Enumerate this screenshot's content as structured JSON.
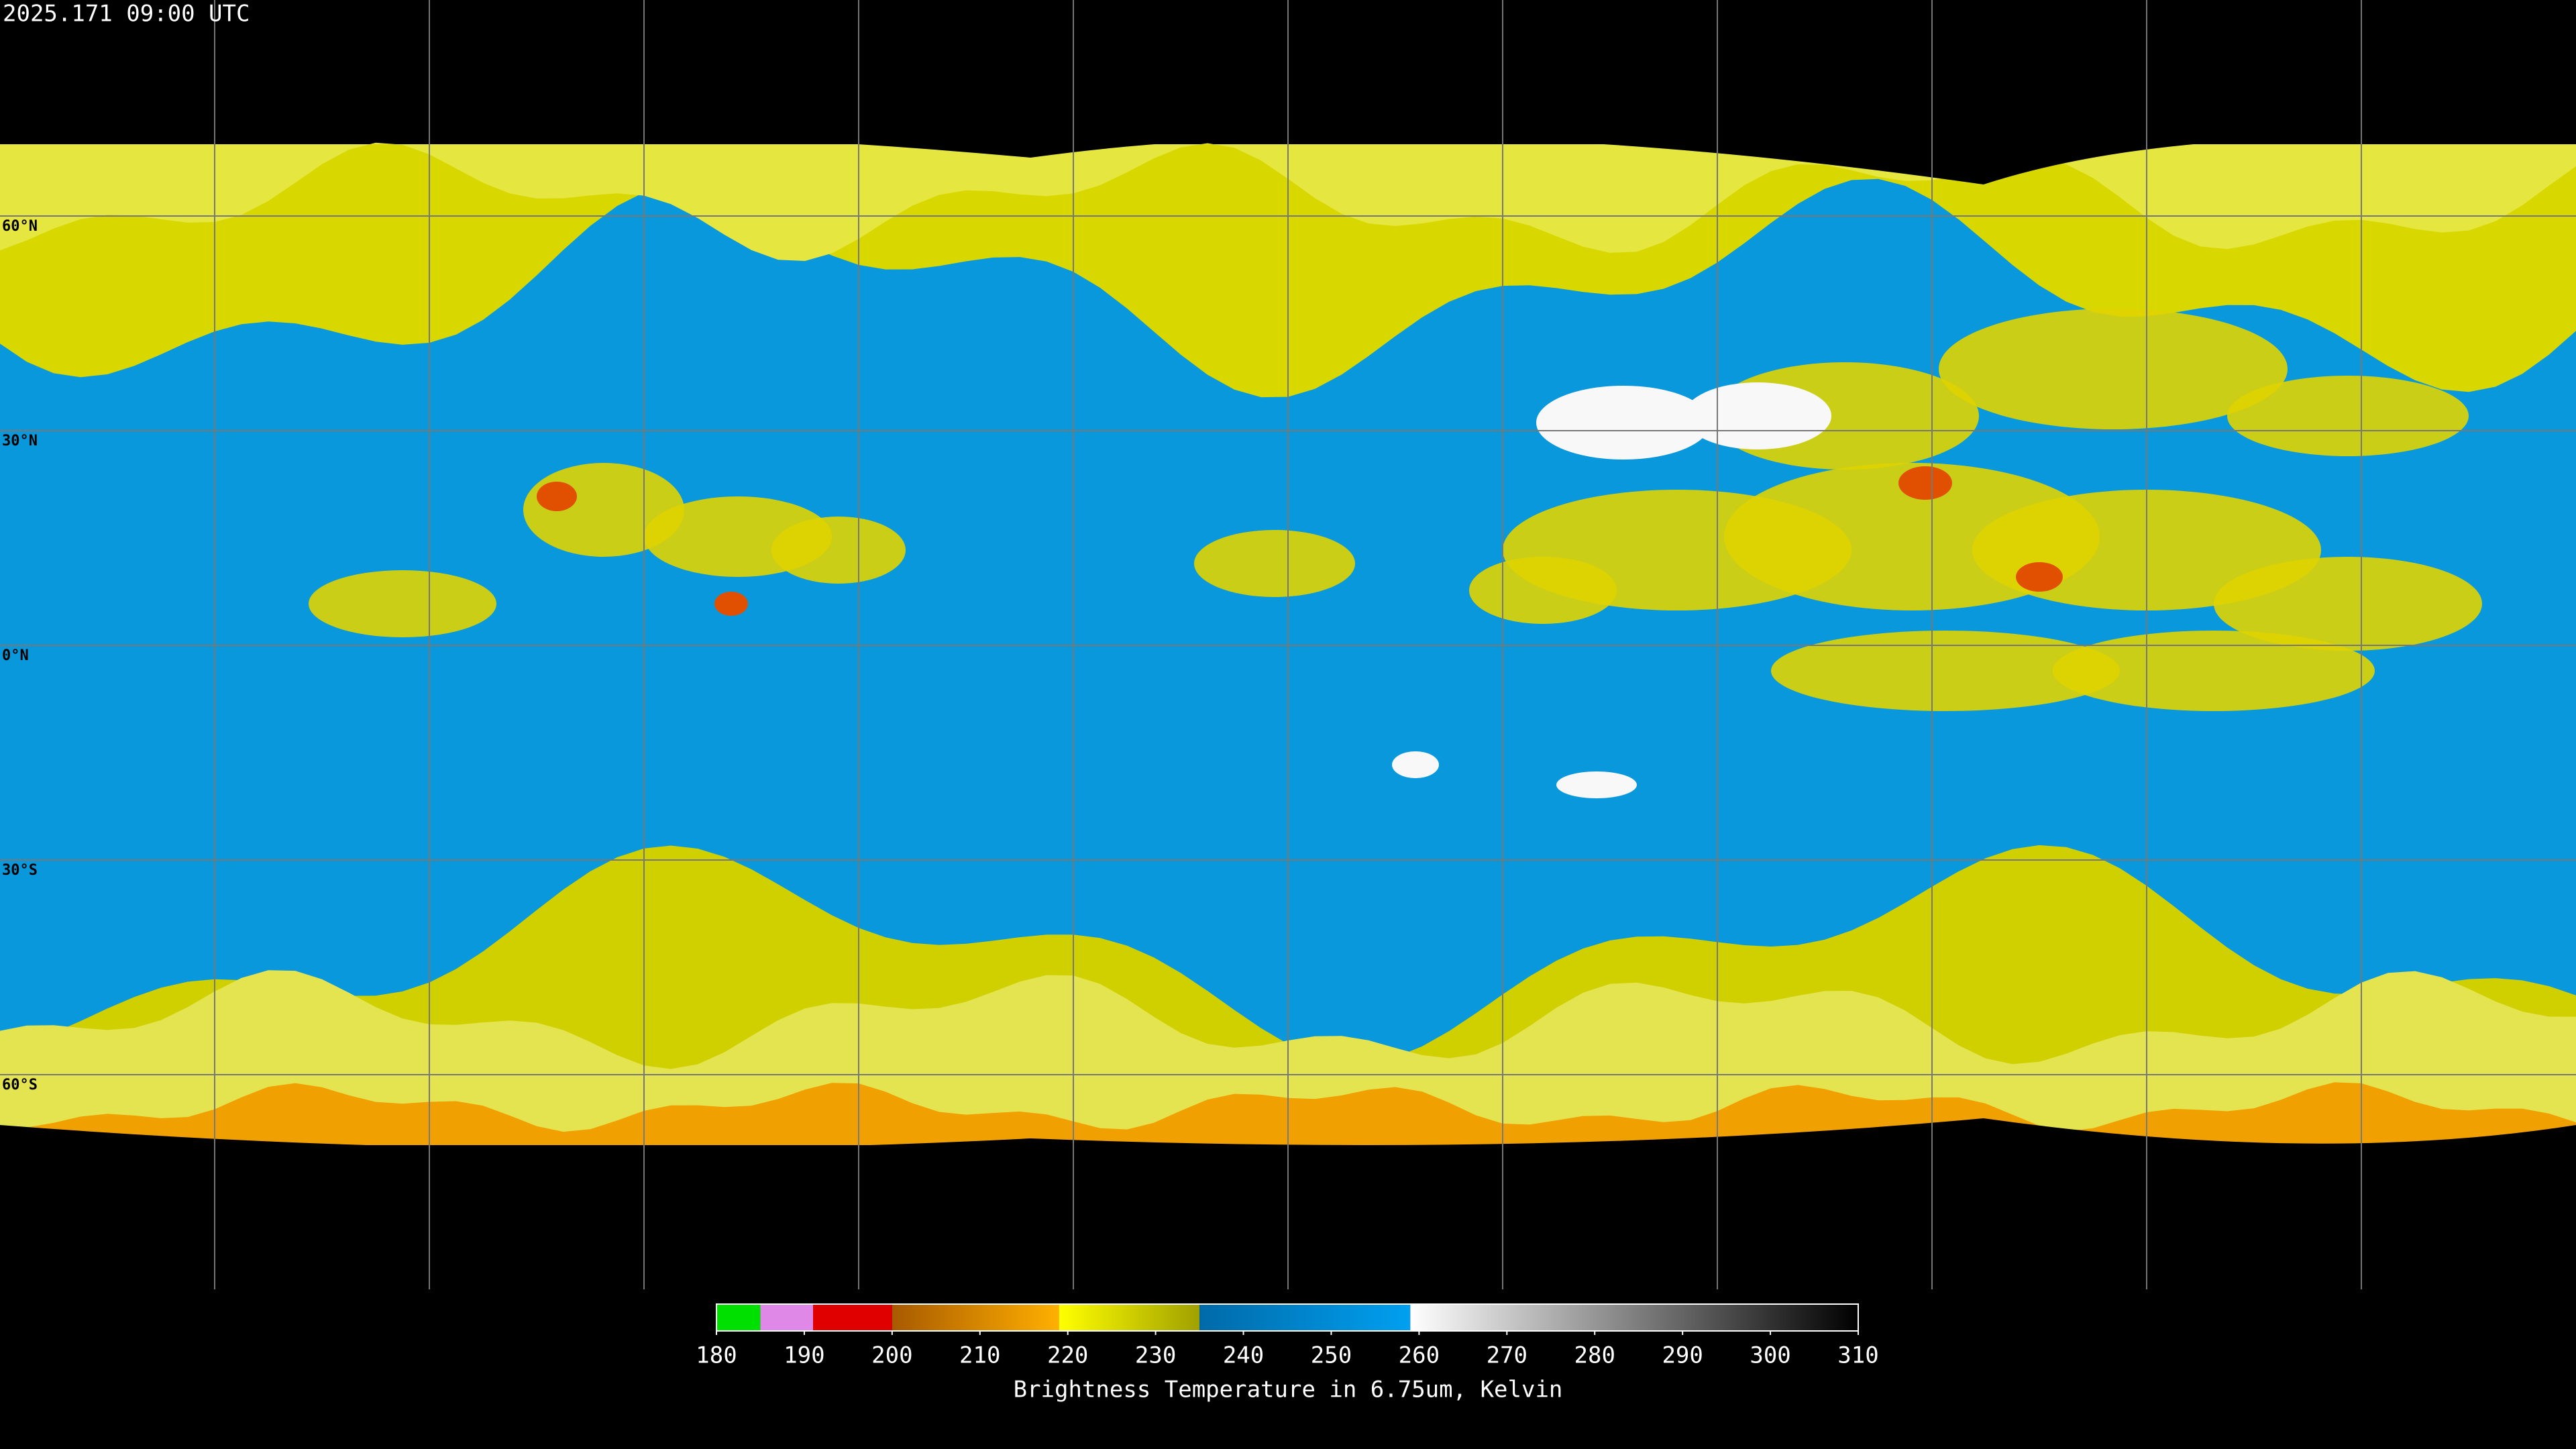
{
  "header": {
    "timestamp": "2025.171 09:00 UTC"
  },
  "map": {
    "lat_lines": [
      {
        "value": 60,
        "label": "60°N"
      },
      {
        "value": 30,
        "label": "30°N"
      },
      {
        "value": 0,
        "label": "0°N"
      },
      {
        "value": -30,
        "label": "30°S"
      },
      {
        "value": -60,
        "label": "60°S"
      }
    ],
    "lon_lines": [
      -150,
      -120,
      -90,
      -60,
      -30,
      0,
      30,
      60,
      90,
      120,
      150
    ]
  },
  "colorbar": {
    "range": [
      180,
      310
    ],
    "ticks": [
      180,
      190,
      200,
      210,
      220,
      230,
      240,
      250,
      260,
      270,
      280,
      290,
      300,
      310
    ],
    "segments": [
      {
        "from": 180,
        "to": 185,
        "colors": [
          "#00e000",
          "#00e000"
        ]
      },
      {
        "from": 185,
        "to": 191,
        "colors": [
          "#e088e8",
          "#e088e8"
        ]
      },
      {
        "from": 191,
        "to": 200,
        "colors": [
          "#e00000",
          "#e00000"
        ]
      },
      {
        "from": 200,
        "to": 219,
        "colors": [
          "#a85a00",
          "#ffb000"
        ]
      },
      {
        "from": 219,
        "to": 235,
        "colors": [
          "#ffff00",
          "#a0a000"
        ]
      },
      {
        "from": 235,
        "to": 259,
        "colors": [
          "#006aa8",
          "#00a0f0"
        ]
      },
      {
        "from": 259,
        "to": 310,
        "colors": [
          "#ffffff",
          "#000000"
        ]
      }
    ],
    "label": "Brightness Temperature in 6.75um, Kelvin"
  }
}
